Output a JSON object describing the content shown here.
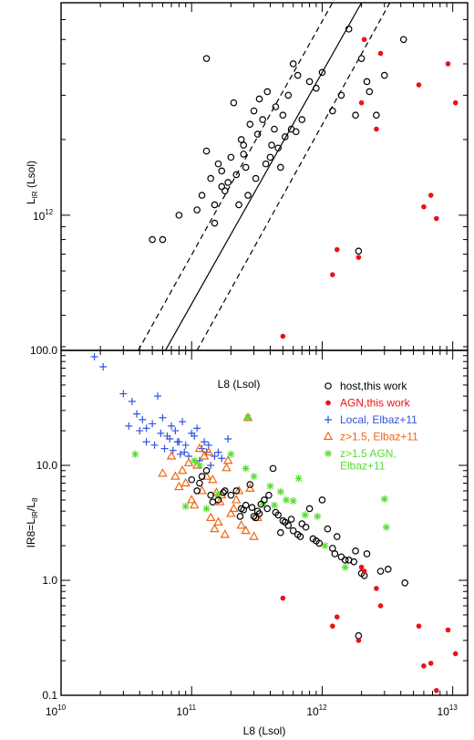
{
  "chart_data": [
    {
      "type": "scatter",
      "panel": "top",
      "ylabel_main": "L",
      "ylabel_sub": "IR",
      "ylabel_unit": " (Lsol)",
      "xlabel": "L8 (Lsol)",
      "ylabel_tick": "10",
      "ylabel_tick_exp": "12",
      "xscale": "log",
      "yscale": "log",
      "xlim": [
        10000000000.0,
        13000000000000.0
      ],
      "ylim": [
        290000000000.0,
        7000000000000.0
      ],
      "lines": [
        {
          "name": "",
          "style": "solid",
          "x": [
            63000000000.0,
            2000000000000.0
          ],
          "y": [
            290000000000.0,
            7000000000000.0
          ]
        },
        {
          "name": "",
          "style": "dashed",
          "x": [
            39000000000.0,
            1200000000000.0
          ],
          "y": [
            290000000000.0,
            7000000000000.0
          ]
        },
        {
          "name": "",
          "style": "dashed",
          "x": [
            110000000000.0,
            3300000000000.0
          ],
          "y": [
            290000000000.0,
            7000000000000.0
          ]
        }
      ],
      "series": [
        {
          "name": "host",
          "marker": "open-circle",
          "color": "#000000",
          "x": [
            50000000000.0,
            60000000000.0,
            80000000000.0,
            110000000000.0,
            120000000000.0,
            130000000000.0,
            140000000000.0,
            150000000000.0,
            160000000000.0,
            170000000000.0,
            180000000000.0,
            200000000000.0,
            220000000000.0,
            240000000000.0,
            250000000000.0,
            260000000000.0,
            280000000000.0,
            300000000000.0,
            320000000000.0,
            350000000000.0,
            380000000000.0,
            400000000000.0,
            430000000000.0,
            460000000000.0,
            500000000000.0,
            550000000000.0,
            600000000000.0,
            650000000000.0,
            700000000000.0,
            800000000000.0,
            900000000000.0,
            1000000000000.0,
            1200000000000.0,
            1400000000000.0,
            1600000000000.0,
            1800000000000.0,
            2000000000000.0,
            2300000000000.0,
            2600000000000.0,
            3000000000000.0,
            130000000000.0,
            170000000000.0,
            210000000000.0,
            270000000000.0,
            330000000000.0,
            410000000000.0,
            520000000000.0,
            630000000000.0,
            190000000000.0,
            250000000000.0,
            370000000000.0,
            440000000000.0,
            580000000000.0,
            150000000000.0,
            230000000000.0,
            310000000000.0,
            480000000000.0,
            1900000000000.0,
            2200000000000.0,
            4200000000000.0
          ],
          "y": [
            800000000000.0,
            800000000000.0,
            1000000000000.0,
            1050000000000.0,
            1200000000000.0,
            4200000000000.0,
            1400000000000.0,
            1100000000000.0,
            1600000000000.0,
            1500000000000.0,
            1250000000000.0,
            1700000000000.0,
            1450000000000.0,
            2000000000000.0,
            1900000000000.0,
            1550000000000.0,
            2300000000000.0,
            2600000000000.0,
            2100000000000.0,
            2400000000000.0,
            3100000000000.0,
            1700000000000.0,
            2200000000000.0,
            1850000000000.0,
            2500000000000.0,
            3000000000000.0,
            4000000000000.0,
            3600000000000.0,
            2400000000000.0,
            3400000000000.0,
            3200000000000.0,
            3700000000000.0,
            2600000000000.0,
            3000000000000.0,
            5500000000000.0,
            2500000000000.0,
            4200000000000.0,
            3100000000000.0,
            2500000000000.0,
            3600000000000.0,
            1800000000000.0,
            1300000000000.0,
            2800000000000.0,
            1200000000000.0,
            2900000000000.0,
            1900000000000.0,
            2050000000000.0,
            2150000000000.0,
            1350000000000.0,
            1750000000000.0,
            1600000000000.0,
            2700000000000.0,
            2200000000000.0,
            930000000000.0,
            1100000000000.0,
            1400000000000.0,
            1550000000000.0,
            720000000000.0,
            3400000000000.0,
            5000000000000.0
          ]
        },
        {
          "name": "AGN",
          "marker": "filled-circle",
          "color": "#ee1111",
          "x": [
            500000000000.0,
            1200000000000.0,
            1300000000000.0,
            1900000000000.0,
            2000000000000.0,
            2100000000000.0,
            2600000000000.0,
            2800000000000.0,
            5500000000000.0,
            6000000000000.0,
            6800000000000.0,
            7500000000000.0,
            9200000000000.0,
            10500000000000.0
          ],
          "y": [
            330000000000.0,
            580000000000.0,
            730000000000.0,
            680000000000.0,
            2800000000000.0,
            5000000000000.0,
            2200000000000.0,
            4400000000000.0,
            3300000000000.0,
            1080000000000.0,
            1200000000000.0,
            970000000000.0,
            4000000000000.0,
            2800000000000.0
          ]
        }
      ]
    },
    {
      "type": "scatter",
      "panel": "bottom",
      "xlabel": "L8 (Lsol)",
      "ylabel_main": "IR8=L",
      "ylabel_sub1": "IR",
      "ylabel_mid": "/L",
      "ylabel_sub2": "8",
      "xscale": "log",
      "yscale": "log",
      "xlim": [
        10000000000.0,
        13000000000000.0
      ],
      "ylim": [
        0.1,
        100
      ],
      "yticks": [
        "0.1",
        "1.0",
        "10.0",
        "100.0"
      ],
      "xticks": [
        "10",
        "10",
        "10",
        "10"
      ],
      "xticks_exp": [
        "10",
        "11",
        "12",
        "13"
      ],
      "annotation": "L8 (Lsol)",
      "legend": {
        "position": "top-right",
        "entries": [
          {
            "symbol": "○",
            "label": "host,this work",
            "color": "#000000"
          },
          {
            "symbol": "●",
            "label": "AGN,this work",
            "color": "#ee1111"
          },
          {
            "symbol": "+",
            "label": "Local, Elbaz+11",
            "color": "#3355dd"
          },
          {
            "symbol": "△",
            "label": "z>1.5, Elbaz+11",
            "color": "#ee6611"
          },
          {
            "symbol": "✳",
            "label": "z>1.5 AGN,",
            "color": "#55dd33"
          },
          {
            "symbol": "",
            "label": "Elbaz+11",
            "color": "#55dd33"
          }
        ]
      },
      "series": [
        {
          "name": "Local, Elbaz+11",
          "marker": "plus",
          "color": "#3355dd",
          "x": [
            18000000000.0,
            21000000000.0,
            30000000000.0,
            35000000000.0,
            38000000000.0,
            42000000000.0,
            45000000000.0,
            50000000000.0,
            55000000000.0,
            60000000000.0,
            65000000000.0,
            70000000000.0,
            75000000000.0,
            80000000000.0,
            85000000000.0,
            90000000000.0,
            100000000000.0,
            110000000000.0,
            120000000000.0,
            130000000000.0,
            150000000000.0,
            170000000000.0,
            45000000000.0,
            52000000000.0,
            62000000000.0,
            72000000000.0,
            82000000000.0,
            95000000000.0,
            105000000000.0,
            125000000000.0,
            140000000000.0,
            33000000000.0,
            40000000000.0,
            58000000000.0,
            68000000000.0,
            78000000000.0,
            88000000000.0,
            115000000000.0,
            135000000000.0,
            160000000000.0,
            190000000000.0
          ],
          "y": [
            88,
            72,
            42,
            36,
            28,
            25,
            21,
            23,
            40,
            26,
            18,
            22,
            20,
            16,
            24,
            15,
            19,
            21,
            14,
            13,
            12,
            11.5,
            16,
            15,
            14,
            13.5,
            12.5,
            12,
            18,
            16,
            10,
            22,
            20,
            19,
            17,
            16,
            13,
            11,
            15,
            13,
            17
          ]
        },
        {
          "name": "z>1.5, Elbaz+11",
          "marker": "open-triangle",
          "color": "#ee6611",
          "x": [
            60000000000.0,
            70000000000.0,
            75000000000.0,
            80000000000.0,
            85000000000.0,
            90000000000.0,
            100000000000.0,
            105000000000.0,
            110000000000.0,
            115000000000.0,
            120000000000.0,
            130000000000.0,
            140000000000.0,
            150000000000.0,
            160000000000.0,
            170000000000.0,
            180000000000.0,
            190000000000.0,
            200000000000.0,
            210000000000.0,
            220000000000.0,
            240000000000.0,
            260000000000.0,
            280000000000.0,
            300000000000.0,
            320000000000.0,
            125000000000.0,
            145000000000.0,
            165000000000.0,
            185000000000.0,
            230000000000.0,
            270000000000.0,
            95000000000.0,
            135000000000.0,
            155000000000.0
          ],
          "y": [
            8.5,
            12,
            8,
            6.5,
            9,
            7,
            5,
            4.5,
            10,
            14,
            6,
            8,
            3.5,
            2.8,
            3.2,
            5.5,
            2.5,
            11,
            3.8,
            4.2,
            5,
            3,
            2.7,
            6.3,
            2.4,
            3.5,
            12,
            7.5,
            4.8,
            9.5,
            6,
            26,
            10.5,
            13,
            5.8
          ]
        },
        {
          "name": "z>1.5 AGN, Elbaz+11",
          "marker": "asterisk",
          "color": "#55dd33",
          "x": [
            37000000000.0,
            90000000000.0,
            105000000000.0,
            115000000000.0,
            130000000000.0,
            160000000000.0,
            200000000000.0,
            260000000000.0,
            270000000000.0,
            300000000000.0,
            350000000000.0,
            400000000000.0,
            430000000000.0,
            480000000000.0,
            530000000000.0,
            600000000000.0,
            660000000000.0,
            740000000000.0,
            920000000000.0,
            1050000000000.0,
            1500000000000.0,
            3000000000000.0,
            3100000000000.0
          ],
          "y": [
            12.5,
            4.4,
            11,
            10,
            4.2,
            5.6,
            12.5,
            9.4,
            26,
            8,
            4.6,
            6.6,
            4.5,
            5.9,
            5,
            4.9,
            7.7,
            3.7,
            3.6,
            2,
            1.3,
            5.1,
            2.9
          ]
        },
        {
          "name": "host,this work",
          "marker": "open-circle",
          "color": "#000000",
          "x": [
            100000000000.0,
            110000000000.0,
            120000000000.0,
            130000000000.0,
            140000000000.0,
            160000000000.0,
            180000000000.0,
            200000000000.0,
            220000000000.0,
            240000000000.0,
            260000000000.0,
            280000000000.0,
            300000000000.0,
            320000000000.0,
            340000000000.0,
            360000000000.0,
            390000000000.0,
            420000000000.0,
            460000000000.0,
            500000000000.0,
            550000000000.0,
            600000000000.0,
            650000000000.0,
            700000000000.0,
            800000000000.0,
            900000000000.0,
            1000000000000.0,
            1100000000000.0,
            1200000000000.0,
            1300000000000.0,
            1400000000000.0,
            1500000000000.0,
            1600000000000.0,
            1800000000000.0,
            2000000000000.0,
            2200000000000.0,
            3200000000000.0,
            4300000000000.0,
            1900000000000.0,
            2100000000000.0,
            2800000000000.0,
            115000000000.0,
            145000000000.0,
            175000000000.0,
            250000000000.0,
            330000000000.0,
            380000000000.0,
            440000000000.0,
            580000000000.0,
            750000000000.0,
            850000000000.0,
            235000000000.0,
            290000000000.0,
            310000000000.0,
            480000000000.0,
            520000000000.0,
            680000000000.0,
            950000000000.0,
            1250000000000.0,
            1750000000000.0
          ],
          "y": [
            7.5,
            6,
            8,
            9,
            5.5,
            5,
            6,
            5.5,
            6,
            4.2,
            4.5,
            6.8,
            3.6,
            4,
            4.6,
            5,
            5.5,
            9.4,
            3.7,
            3.3,
            3,
            2.7,
            2.5,
            3.1,
            4.2,
            2.2,
            5,
            2.8,
            1.9,
            2.4,
            1.6,
            1.5,
            1.5,
            1.8,
            1.15,
            1.7,
            1.25,
            0.95,
            0.33,
            1.1,
            1.2,
            7,
            4.8,
            5.8,
            4.1,
            3.8,
            4.2,
            3.9,
            3.4,
            2.9,
            2.3,
            3.6,
            4.3,
            3.5,
            2.6,
            3.2,
            2.4,
            2.1,
            1.7,
            1.45
          ]
        },
        {
          "name": "AGN,this work",
          "marker": "filled-circle",
          "color": "#ee1111",
          "x": [
            500000000000.0,
            1200000000000.0,
            1300000000000.0,
            1900000000000.0,
            2000000000000.0,
            2100000000000.0,
            2600000000000.0,
            2800000000000.0,
            5500000000000.0,
            6000000000000.0,
            6800000000000.0,
            7500000000000.0,
            9200000000000.0,
            10500000000000.0
          ],
          "y": [
            0.7,
            0.4,
            0.48,
            0.3,
            1.3,
            1.2,
            0.85,
            0.6,
            0.4,
            0.18,
            0.19,
            0.11,
            0.37,
            0.23
          ]
        }
      ]
    }
  ]
}
